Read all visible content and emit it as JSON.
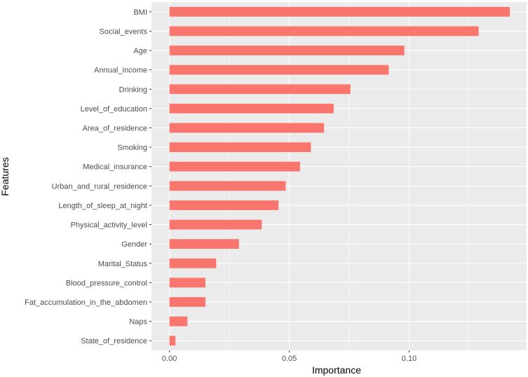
{
  "chart_data": {
    "type": "bar",
    "orientation": "horizontal",
    "title": "",
    "xlabel": "Importance",
    "ylabel": "Features",
    "xlim": [
      -0.0075,
      0.149
    ],
    "x_ticks": [
      0.0,
      0.05,
      0.1
    ],
    "x_tick_labels": [
      "0.00",
      "0.05",
      "0.10"
    ],
    "grid": true,
    "categories": [
      "BMI",
      "Social_events",
      "Age",
      "Annual_income",
      "Drinking",
      "Level_of_education",
      "Area_of_residence",
      "Smoking",
      "Medical_insurance",
      "Urban_and_rural_residence",
      "Length_of_sleep_at_night",
      "Physical_activity_level",
      "Gender",
      "Marital_Status",
      "Blood_pressure_control",
      "Fat_accumulation_in_the_abdomen",
      "Naps",
      "State_of_residence"
    ],
    "values": [
      0.142,
      0.129,
      0.098,
      0.0915,
      0.0755,
      0.0685,
      0.0645,
      0.059,
      0.0545,
      0.0485,
      0.0455,
      0.0385,
      0.029,
      0.0195,
      0.015,
      0.015,
      0.0075,
      0.0025
    ],
    "colors": {
      "bar": "#F8766D",
      "panel": "#EBEBEB",
      "grid_major": "#FFFFFF",
      "tick_text": "#4D4D4D",
      "tick_mark": "#333333"
    }
  }
}
